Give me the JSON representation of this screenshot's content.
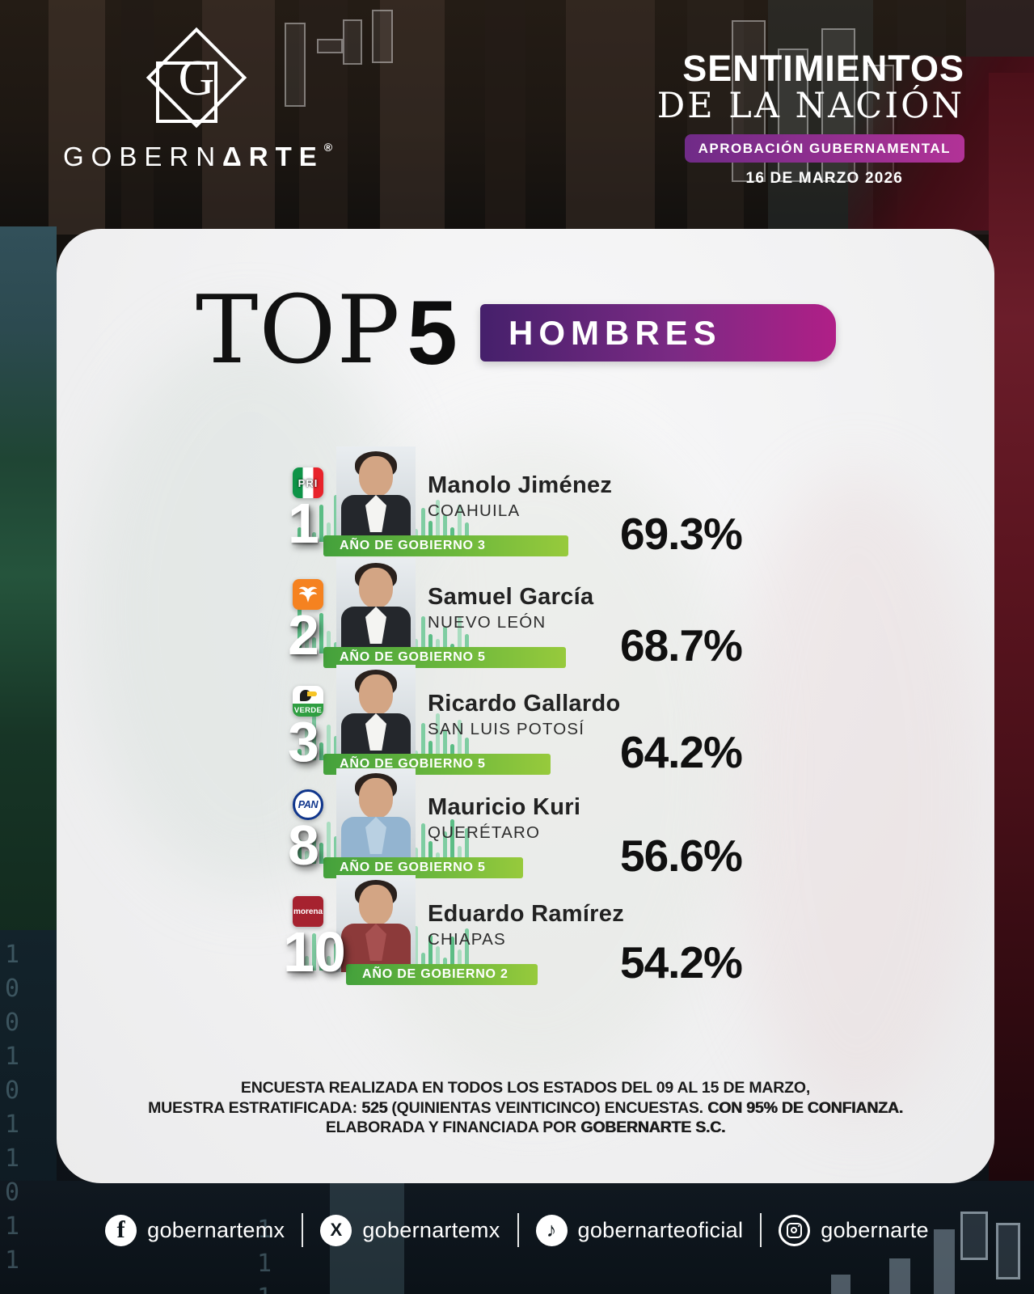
{
  "header": {
    "brand": {
      "logo_letter": "G",
      "word_regular": "GOBERN",
      "word_triangle": "Δ",
      "word_bold": "RTE",
      "reg_mark": "®"
    },
    "title_line1": "SENTIMIENTOS",
    "title_line2": "DE LA NACIÓN",
    "badge": "APROBACIÓN GUBERNAMENTAL",
    "date": "16 DE MARZO 2026"
  },
  "card": {
    "top_label": "TOP",
    "top_number": "5",
    "category": "HOMBRES",
    "entries": [
      {
        "rank": "1",
        "party": "pri",
        "party_label": "PRI",
        "name": "Manolo Jiménez",
        "state": "COAHUILA",
        "term_label": "AÑO DE GOBIERNO 3",
        "approval": "69.3%",
        "approval_value": 69.3
      },
      {
        "rank": "2",
        "party": "mc",
        "party_label": "",
        "name": "Samuel García",
        "state": "NUEVO LEÓN",
        "term_label": "AÑO DE GOBIERNO 5",
        "approval": "68.7%",
        "approval_value": 68.7
      },
      {
        "rank": "3",
        "party": "verde",
        "party_label": "VERDE",
        "name": "Ricardo Gallardo",
        "state": "SAN LUIS POTOSÍ",
        "term_label": "AÑO DE GOBIERNO 5",
        "approval": "64.2%",
        "approval_value": 64.2
      },
      {
        "rank": "8",
        "party": "pan",
        "party_label": "PAN",
        "name": "Mauricio Kuri",
        "state": "QUERÉTARO",
        "term_label": "AÑO DE GOBIERNO 5",
        "approval": "56.6%",
        "approval_value": 56.6
      },
      {
        "rank": "10",
        "party": "morena",
        "party_label": "morena",
        "name": "Eduardo Ramírez",
        "state": "CHIAPAS",
        "term_label": "AÑO DE GOBIERNO 2",
        "approval": "54.2%",
        "approval_value": 54.2
      }
    ],
    "footnote": {
      "l1": "ENCUESTA REALIZADA EN TODOS LOS ESTADOS DEL 09 AL 15 DE MARZO,",
      "l2a": "MUESTRA ESTRATIFICADA: ",
      "l2b": "525",
      "l2c": " (QUINIENTAS VEINTICINCO) ENCUESTAS. ",
      "l2d": "CON 95% DE CONFIANZA.",
      "l3a": "ELABORADA Y FINANCIADA POR ",
      "l3b": "GOBERNARTE S.C."
    }
  },
  "social": {
    "items": [
      {
        "network": "facebook",
        "icon": "facebook-icon",
        "handle": "gobernartemx"
      },
      {
        "network": "x",
        "icon": "x-icon",
        "handle": "gobernartemx"
      },
      {
        "network": "tiktok",
        "icon": "tiktok-icon",
        "handle": "gobernarteoficial"
      },
      {
        "network": "instagram",
        "icon": "instagram-icon",
        "handle": "gobernarte"
      }
    ]
  },
  "colors": {
    "bar_green_start": "#44a13c",
    "bar_green_end": "#97ca3c",
    "purple_start": "#45206b",
    "purple_end": "#b01f87",
    "badge_start": "#6f2b87",
    "badge_end": "#b23297",
    "party_pri_green": "#0e9347",
    "party_pri_red": "#e8232b",
    "party_mc_orange": "#f58220",
    "party_verde_green": "#2f9e41",
    "party_pan_blue": "#10368c",
    "party_morena_red": "#a6222f"
  },
  "chart_data": {
    "type": "bar",
    "title": "TOP 5 HOMBRES — APROBACIÓN GUBERNAMENTAL — 16 DE MARZO 2026",
    "categories": [
      "Manolo Jiménez (COAHUILA)",
      "Samuel García (NUEVO LEÓN)",
      "Ricardo Gallardo (SAN LUIS POTOSÍ)",
      "Mauricio Kuri (QUERÉTARO)",
      "Eduardo Ramírez (CHIAPAS)"
    ],
    "values": [
      69.3,
      68.7,
      64.2,
      56.6,
      54.2
    ],
    "ranks": [
      1,
      2,
      3,
      8,
      10
    ],
    "parties": [
      "PRI",
      "MC",
      "VERDE",
      "PAN",
      "MORENA"
    ],
    "years_in_office": [
      3,
      5,
      5,
      5,
      2
    ],
    "xlabel": "",
    "ylabel": "Aprobación (%)",
    "ylim": [
      0,
      100
    ],
    "legend_position": "none",
    "grid": false
  }
}
